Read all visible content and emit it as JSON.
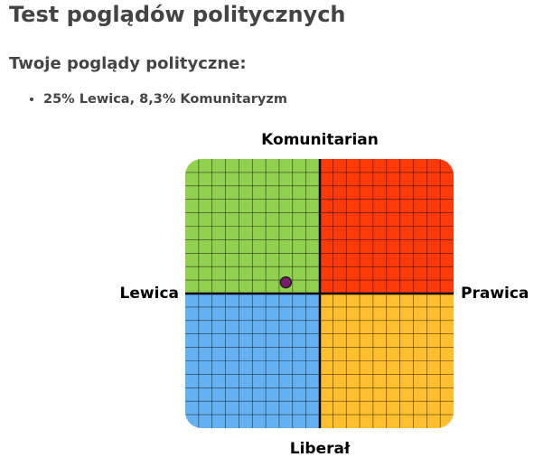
{
  "header": {
    "title": "Test poglądów politycznych"
  },
  "result": {
    "heading": "Twoje poglądy polityczne:",
    "items": [
      "25% Lewica, 8,3% Komunitaryzm"
    ]
  },
  "compass": {
    "top_label": "Komunitarian",
    "bottom_label": "Liberał",
    "left_label": "Lewica",
    "right_label": "Prawica",
    "xlim": [
      -100,
      100
    ],
    "ylim": [
      -100,
      100
    ],
    "point": {
      "x": -25,
      "y": 8.3
    }
  }
}
